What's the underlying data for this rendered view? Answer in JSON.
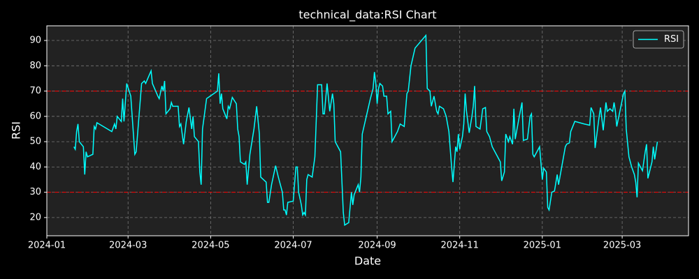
{
  "chart_data": {
    "type": "line",
    "title": "technical_data:RSI Chart",
    "x_label": "Date",
    "y_label": "RSI",
    "x": [
      "2024-01-21",
      "2024-01-22",
      "2024-01-23",
      "2024-01-24",
      "2024-01-25",
      "2024-01-28",
      "2024-01-29",
      "2024-01-30",
      "2024-01-31",
      "2024-02-04",
      "2024-02-05",
      "2024-02-06",
      "2024-02-07",
      "2024-02-18",
      "2024-02-20",
      "2024-02-21",
      "2024-02-22",
      "2024-02-25",
      "2024-02-26",
      "2024-02-27",
      "2024-02-29",
      "2024-03-03",
      "2024-03-06",
      "2024-03-07",
      "2024-03-11",
      "2024-03-13",
      "2024-03-14",
      "2024-03-18",
      "2024-03-19",
      "2024-03-23",
      "2024-03-24",
      "2024-03-26",
      "2024-03-27",
      "2024-03-28",
      "2024-03-29",
      "2024-04-01",
      "2024-04-02",
      "2024-04-03",
      "2024-04-07",
      "2024-04-08",
      "2024-04-09",
      "2024-04-11",
      "2024-04-13",
      "2024-04-15",
      "2024-04-17",
      "2024-04-18",
      "2024-04-19",
      "2024-04-22",
      "2024-04-23",
      "2024-04-24",
      "2024-04-25",
      "2024-04-28",
      "2024-05-06",
      "2024-05-07",
      "2024-05-08",
      "2024-05-09",
      "2024-05-10",
      "2024-05-13",
      "2024-05-14",
      "2024-05-15",
      "2024-05-17",
      "2024-05-20",
      "2024-05-21",
      "2024-05-22",
      "2024-05-23",
      "2024-05-26",
      "2024-05-27",
      "2024-05-28",
      "2024-05-30",
      "2024-06-02",
      "2024-06-04",
      "2024-06-06",
      "2024-06-07",
      "2024-06-11",
      "2024-06-12",
      "2024-06-13",
      "2024-06-15",
      "2024-06-18",
      "2024-06-20",
      "2024-06-23",
      "2024-06-24",
      "2024-06-25",
      "2024-06-26",
      "2024-06-27",
      "2024-07-01",
      "2024-07-03",
      "2024-07-04",
      "2024-07-05",
      "2024-07-07",
      "2024-07-08",
      "2024-07-09",
      "2024-07-10",
      "2024-07-11",
      "2024-07-12",
      "2024-07-15",
      "2024-07-17",
      "2024-07-19",
      "2024-07-22",
      "2024-07-23",
      "2024-07-24",
      "2024-07-26",
      "2024-07-28",
      "2024-07-30",
      "2024-07-31",
      "2024-08-01",
      "2024-08-03",
      "2024-08-05",
      "2024-08-07",
      "2024-08-08",
      "2024-08-11",
      "2024-08-13",
      "2024-08-14",
      "2024-08-15",
      "2024-08-18",
      "2024-08-19",
      "2024-08-20",
      "2024-08-21",
      "2024-08-27",
      "2024-08-29",
      "2024-08-30",
      "2024-08-31",
      "2024-09-01",
      "2024-09-02",
      "2024-09-03",
      "2024-09-05",
      "2024-09-06",
      "2024-09-08",
      "2024-09-09",
      "2024-09-11",
      "2024-09-12",
      "2024-09-13",
      "2024-09-16",
      "2024-09-18",
      "2024-09-21",
      "2024-09-23",
      "2024-09-24",
      "2024-09-26",
      "2024-09-29",
      "2024-10-07",
      "2024-10-08",
      "2024-10-10",
      "2024-10-11",
      "2024-10-13",
      "2024-10-15",
      "2024-10-16",
      "2024-10-17",
      "2024-10-20",
      "2024-10-22",
      "2024-10-24",
      "2024-10-26",
      "2024-10-27",
      "2024-10-29",
      "2024-10-30",
      "2024-10-31",
      "2024-11-01",
      "2024-11-03",
      "2024-11-04",
      "2024-11-05",
      "2024-11-06",
      "2024-11-08",
      "2024-11-10",
      "2024-11-11",
      "2024-11-12",
      "2024-11-13",
      "2024-11-16",
      "2024-11-18",
      "2024-11-20",
      "2024-11-21",
      "2024-11-23",
      "2024-11-25",
      "2024-11-28",
      "2024-12-01",
      "2024-12-02",
      "2024-12-04",
      "2024-12-05",
      "2024-12-07",
      "2024-12-08",
      "2024-12-10",
      "2024-12-11",
      "2024-12-12",
      "2024-12-15",
      "2024-12-17",
      "2024-12-18",
      "2024-12-21",
      "2024-12-23",
      "2024-12-24",
      "2024-12-25",
      "2024-12-26",
      "2024-12-29",
      "2024-12-30",
      "2025-01-01",
      "2025-01-02",
      "2025-01-04",
      "2025-01-05",
      "2025-01-06",
      "2025-01-08",
      "2025-01-10",
      "2025-01-12",
      "2025-01-13",
      "2025-01-15",
      "2025-01-18",
      "2025-01-19",
      "2025-01-21",
      "2025-01-22",
      "2025-01-25",
      "2025-02-01",
      "2025-02-05",
      "2025-02-06",
      "2025-02-08",
      "2025-02-09",
      "2025-02-12",
      "2025-02-13",
      "2025-02-15",
      "2025-02-17",
      "2025-02-18",
      "2025-02-20",
      "2025-02-22",
      "2025-02-23",
      "2025-02-24",
      "2025-02-25",
      "2025-03-02",
      "2025-03-03",
      "2025-03-04",
      "2025-03-06",
      "2025-03-08",
      "2025-03-10",
      "2025-03-11",
      "2025-03-12",
      "2025-03-13",
      "2025-03-16",
      "2025-03-18",
      "2025-03-19",
      "2025-03-20",
      "2025-03-23",
      "2025-03-24",
      "2025-03-25",
      "2025-03-27"
    ],
    "series": [
      {
        "name": "RSI",
        "color": "#00ffff",
        "values": [
          48,
          47,
          54,
          57,
          50,
          48,
          37,
          46,
          44,
          45,
          56,
          55,
          57.5,
          54,
          57,
          55,
          60,
          58,
          67,
          58,
          73,
          68,
          45,
          46,
          73,
          74,
          73,
          78,
          73,
          68,
          67,
          72,
          70,
          74,
          61,
          63,
          65.5,
          64,
          64,
          56,
          57,
          49,
          58,
          63.5,
          55,
          60,
          52,
          50,
          38,
          33,
          55,
          67,
          70,
          77,
          65,
          69,
          63,
          59,
          64,
          63,
          67.5,
          65,
          55,
          52,
          42,
          41,
          42,
          33,
          45,
          55,
          64,
          53,
          36,
          34,
          26,
          26,
          33,
          40.5,
          36,
          30,
          23,
          23,
          21,
          26,
          26.5,
          40,
          40,
          30,
          25,
          21,
          22,
          21,
          35,
          37,
          36,
          44,
          72.5,
          72.5,
          61,
          61,
          73,
          62,
          69,
          65,
          50,
          48,
          46,
          22,
          17,
          18,
          30,
          25,
          29,
          33,
          30,
          36,
          53,
          67,
          71,
          77.5,
          73,
          65,
          71,
          73,
          72,
          68,
          68,
          61,
          62,
          50,
          51,
          54,
          57,
          56,
          69,
          70,
          80,
          87,
          92,
          71,
          70,
          64,
          68,
          62,
          61,
          64,
          63,
          60,
          54,
          40,
          34,
          48,
          46,
          53,
          47,
          52,
          57,
          69,
          62,
          53.5,
          60,
          64,
          72,
          56,
          55,
          63,
          63.5,
          54,
          52,
          48,
          45,
          42,
          34.5,
          38,
          53,
          50,
          52,
          49,
          63,
          51,
          60,
          65.5,
          50.5,
          51,
          60,
          61,
          45,
          44,
          47,
          48,
          35,
          39.5,
          38,
          24,
          23,
          30,
          30.5,
          37,
          33,
          39,
          48,
          49,
          49.5,
          54,
          58,
          57,
          56.5,
          63.5,
          61,
          47.5,
          60,
          63.5,
          54.5,
          65.5,
          62,
          63,
          62,
          65.5,
          62,
          56,
          69,
          70,
          55,
          44,
          40,
          37,
          34,
          28,
          41.5,
          38.5,
          46,
          49,
          35.5,
          42,
          48,
          43,
          50
        ]
      }
    ],
    "xlim": [
      "2024-01-01",
      "2025-04-19"
    ],
    "xticks": [
      "2024-01",
      "2024-03",
      "2024-05",
      "2024-07",
      "2024-09",
      "2024-11",
      "2025-01",
      "2025-03"
    ],
    "ylim": [
      12.8,
      95.8
    ],
    "yticks": [
      20,
      30,
      40,
      50,
      60,
      70,
      80,
      90
    ],
    "hlines": [
      {
        "value": 70,
        "color": "#ff0000"
      },
      {
        "value": 30,
        "color": "#ff0000"
      }
    ],
    "grid": true,
    "legend": "upper right"
  }
}
